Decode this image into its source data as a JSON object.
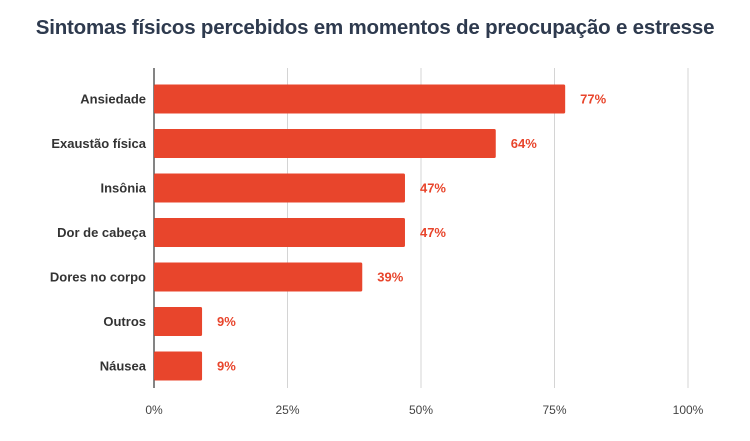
{
  "chart_data": {
    "type": "bar",
    "orientation": "horizontal",
    "title": "Sintomas físicos percebidos em momentos de preocupação e estresse",
    "categories": [
      "Ansiedade",
      "Exaustão física",
      "Insônia",
      "Dor de cabeça",
      "Dores no corpo",
      "Outros",
      "Náusea"
    ],
    "values": [
      77,
      64,
      47,
      47,
      39,
      9,
      9
    ],
    "value_labels": [
      "77%",
      "64%",
      "47%",
      "47%",
      "39%",
      "9%",
      "9%"
    ],
    "xlim": [
      0,
      100
    ],
    "x_ticks": [
      0,
      25,
      50,
      75,
      100
    ],
    "x_tick_labels": [
      "0%",
      "25%",
      "50%",
      "75%",
      "100%"
    ],
    "grid": true,
    "bar_color": "#e8452c",
    "label_color": "#e8452c",
    "title_color": "#2e3a4e"
  }
}
